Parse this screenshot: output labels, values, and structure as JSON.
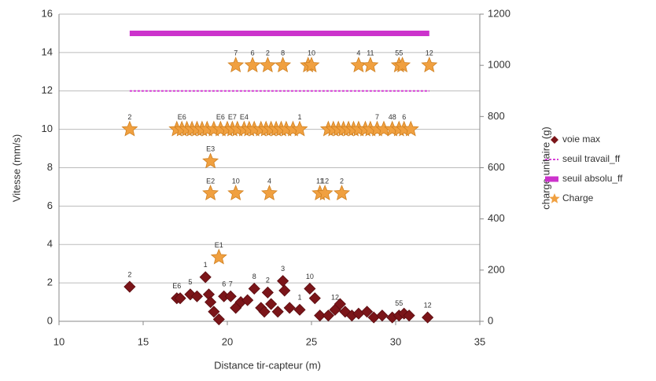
{
  "chart_data": {
    "type": "scatter",
    "xlabel": "Distance tir-capteur (m)",
    "ylabel": "Vitesse (mm/s)",
    "y2label": "charge unitaire (g)",
    "xlim": [
      10,
      35
    ],
    "xticks": [
      10,
      15,
      20,
      25,
      30,
      35
    ],
    "ylim": [
      0,
      16
    ],
    "yticks": [
      0,
      2,
      4,
      6,
      8,
      10,
      12,
      14,
      16
    ],
    "y2lim": [
      0,
      1200
    ],
    "y2ticks": [
      0,
      200,
      400,
      600,
      800,
      1000,
      1200
    ],
    "grid": true,
    "legend": "right",
    "series": [
      {
        "name": "voie max",
        "color": "#7b1519",
        "marker": "diamond",
        "axis": "y",
        "x": [
          14.2,
          17.0,
          17.2,
          17.8,
          18.2,
          18.7,
          18.9,
          19.0,
          19.2,
          19.5,
          19.8,
          20.2,
          20.5,
          20.8,
          21.2,
          21.6,
          22.0,
          22.2,
          22.4,
          22.6,
          23.0,
          23.3,
          23.4,
          23.7,
          24.3,
          24.9,
          25.2,
          25.5,
          26.0,
          26.4,
          26.7,
          27.0,
          27.4,
          27.8,
          28.3,
          28.7,
          29.2,
          29.8,
          30.2,
          30.5,
          30.8,
          31.9
        ],
        "values": [
          1.8,
          1.2,
          1.2,
          1.4,
          1.3,
          2.3,
          1.4,
          1.0,
          0.5,
          0.1,
          1.3,
          1.3,
          0.7,
          1.0,
          1.1,
          1.7,
          0.7,
          0.5,
          1.5,
          0.9,
          0.5,
          2.1,
          1.6,
          0.7,
          0.6,
          1.7,
          1.2,
          0.3,
          0.3,
          0.6,
          0.9,
          0.5,
          0.3,
          0.4,
          0.5,
          0.2,
          0.3,
          0.2,
          0.3,
          0.4,
          0.3,
          0.2
        ],
        "labels": [
          "2",
          "E6",
          null,
          "5",
          null,
          "1",
          null,
          null,
          null,
          null,
          "6",
          "7",
          null,
          null,
          null,
          "8",
          null,
          null,
          "2",
          null,
          null,
          "3",
          null,
          null,
          "1",
          "10",
          null,
          null,
          null,
          "12",
          null,
          null,
          null,
          null,
          null,
          null,
          null,
          null,
          "55",
          null,
          null,
          "12"
        ]
      },
      {
        "name": "seuil travail_ff",
        "color": "#d63fd6",
        "marker": "line",
        "dashed": true,
        "line_width": 2,
        "axis": "y",
        "x": [
          14.2,
          32.0
        ],
        "values": [
          12,
          12
        ]
      },
      {
        "name": "seuil absolu_ff",
        "color": "#cc33cc",
        "marker": "line",
        "dashed": false,
        "line_width": 7,
        "axis": "y",
        "x": [
          14.2,
          32.0
        ],
        "values": [
          15,
          15
        ]
      },
      {
        "name": "Charge",
        "color": "#f0a040",
        "marker": "star",
        "axis": "y2",
        "x": [
          20.5,
          21.5,
          22.4,
          23.3,
          24.8,
          25.0,
          27.8,
          28.5,
          30.2,
          30.4,
          32.0,
          14.2,
          17.0,
          17.3,
          17.6,
          17.9,
          18.2,
          18.5,
          18.8,
          19.2,
          19.6,
          20.0,
          20.3,
          20.6,
          21.0,
          21.3,
          21.6,
          22.0,
          22.3,
          22.6,
          22.9,
          23.2,
          23.5,
          23.9,
          24.3,
          26.0,
          26.3,
          26.6,
          26.9,
          27.2,
          27.5,
          27.8,
          28.2,
          28.5,
          28.9,
          29.3,
          29.8,
          30.2,
          30.5,
          30.9,
          19.0,
          19.0,
          20.5,
          22.5,
          25.5,
          25.8,
          26.8,
          19.5
        ],
        "values": [
          1000,
          1000,
          1000,
          1000,
          1000,
          1000,
          1000,
          1000,
          1000,
          1000,
          1000,
          750,
          750,
          750,
          750,
          750,
          750,
          750,
          750,
          750,
          750,
          750,
          750,
          750,
          750,
          750,
          750,
          750,
          750,
          750,
          750,
          750,
          750,
          750,
          750,
          750,
          750,
          750,
          750,
          750,
          750,
          750,
          750,
          750,
          750,
          750,
          750,
          750,
          750,
          750,
          625,
          500,
          500,
          500,
          500,
          500,
          500,
          250
        ],
        "labels": [
          "7",
          "6",
          "2",
          "8",
          null,
          "10",
          "4",
          "11",
          "55",
          null,
          "12",
          "2",
          null,
          "E6",
          null,
          null,
          null,
          null,
          null,
          null,
          "E6",
          null,
          "E7",
          null,
          "E4",
          null,
          null,
          null,
          null,
          null,
          null,
          null,
          null,
          null,
          "1",
          null,
          null,
          null,
          null,
          null,
          null,
          null,
          null,
          null,
          "7",
          null,
          "48",
          null,
          "6",
          null,
          "E3",
          "E2",
          "10",
          "4",
          "11",
          "12",
          "2",
          "E1"
        ]
      }
    ]
  }
}
